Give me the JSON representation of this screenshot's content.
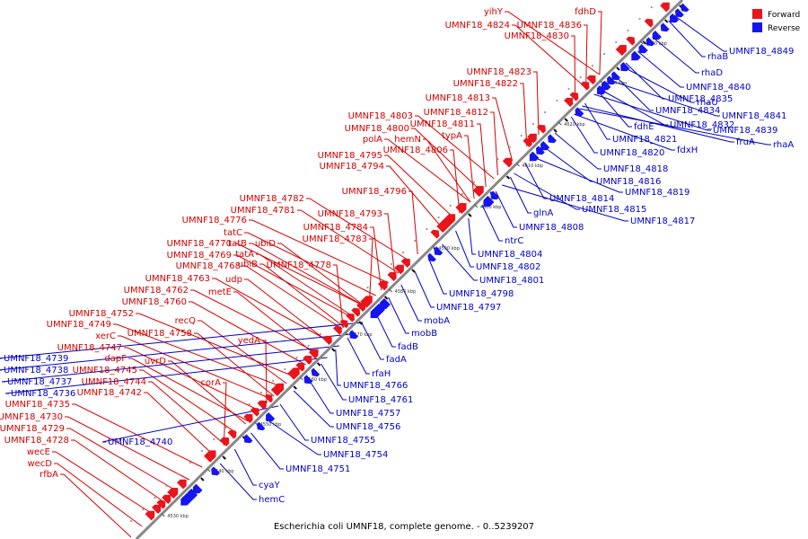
{
  "caption": "Escherichia coli UMNF18, complete genome. - 0..5239207",
  "legend": [
    {
      "label": "Forward",
      "color": "#e8151b"
    },
    {
      "label": "Reverse",
      "color": "#1515f0"
    }
  ],
  "colors": {
    "forward": "#e8151b",
    "reverse": "#1515f0",
    "axis": "#888888",
    "label_forward": "#d40000",
    "label_reverse": "#0000c8"
  },
  "scale_ticks": [
    "4530 kbp",
    "4540 kbp",
    "4550 kbp",
    "4560 kbp",
    "4570 kbp",
    "4580 kbp",
    "4590 kbp",
    "4600 kbp",
    "4610 kbp",
    "4620 kbp",
    "4630 kbp",
    "4640 kbp"
  ],
  "forward_labels": [
    "yihY",
    "fdhD",
    "UMNF18_4824",
    "UMNF18_4836",
    "UMNF18_4830",
    "UMNF18_4823",
    "UMNF18_4822",
    "UMNF18_4813",
    "UMNF18_4812",
    "UMNF18_4803",
    "UMNF18_4811",
    "UMNF18_4800",
    "typA",
    "polA",
    "hemN",
    "UMNF18_4806",
    "UMNF18_4795",
    "UMNF18_4794",
    "UMNF18_4796",
    "UMNF18_4782",
    "UMNF18_4781",
    "UMNF18_4793",
    "UMNF18_4776",
    "tatC",
    "UMNF18_4784",
    "tatB",
    "ubiD",
    "UMNF18_4783",
    "UMNF18_4770",
    "UMNF18_4769",
    "tatA",
    "UMNF18_4768",
    "ubiB",
    "UMNF18_4778",
    "UMNF18_4763",
    "udp",
    "UMNF18_4762",
    "metE",
    "UMNF18_4760",
    "UMNF18_4752",
    "recQ",
    "UMNF18_4749",
    "UMNF18_4758",
    "xerC",
    "yedA",
    "UMNF18_4747",
    "dapF",
    "uvrD",
    "UMNF18_4745",
    "UMNF18_4744",
    "corA",
    "UMNF18_4742",
    "UMNF18_4735",
    "UMNF18_4730",
    "UMNF18_4729",
    "UMNF18_4728",
    "wecE",
    "wecD",
    "rfbA"
  ],
  "reverse_labels": [
    "rhaB",
    "UMNF18_4849",
    "rhaD",
    "UMNF18_4840",
    "rhaU",
    "UMNF18_4835",
    "UMNF18_4834",
    "UMNF18_4841",
    "fdhE",
    "UMNF18_4832",
    "UMNF18_4839",
    "UMNF18_4821",
    "fruA",
    "rhaA",
    "fdxH",
    "UMNF18_4820",
    "UMNF18_4818",
    "UMNF18_4816",
    "UMNF18_4819",
    "UMNF18_4814",
    "glnA",
    "UMNF18_4815",
    "UMNF18_4817",
    "UMNF18_4808",
    "ntrC",
    "UMNF18_4804",
    "UMNF18_4802",
    "UMNF18_4801",
    "UMNF18_4798",
    "UMNF18_4797",
    "mobA",
    "mobB",
    "fadB",
    "fadA",
    "rfaH",
    "UMNF18_4766",
    "UMNF18_4761",
    "UMNF18_4757",
    "UMNF18_4756",
    "UMNF18_4755",
    "UMNF18_4754",
    "UMNF18_4751",
    "cyaY",
    "hemC",
    "UMNF18_4739",
    "UMNF18_4738",
    "UMNF18_4737",
    "UMNF18_4736",
    "UMNF18_4740"
  ]
}
